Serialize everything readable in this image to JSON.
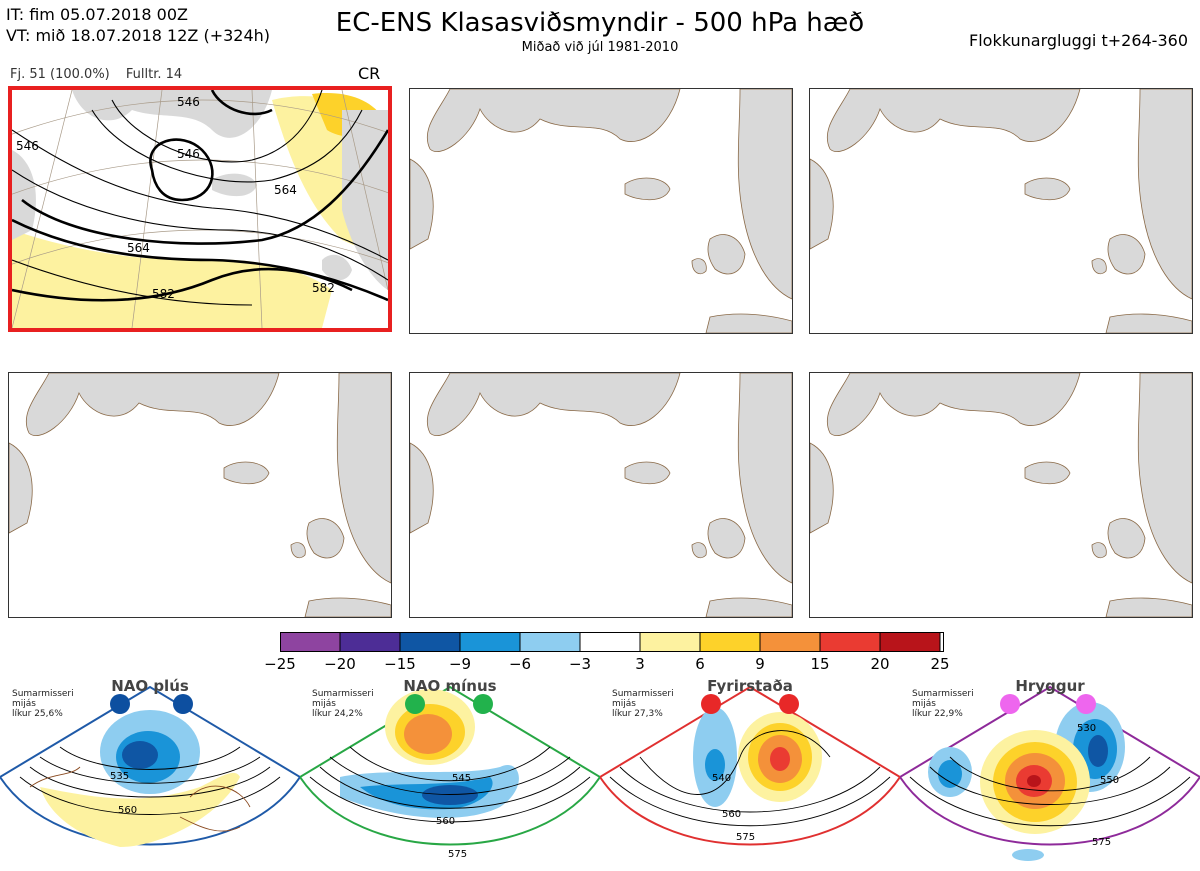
{
  "header": {
    "init_time": "IT: fim 05.07.2018 00Z",
    "valid_time": "VT: mið 18.07.2018 12Z  (+324h)",
    "title": "EC-ENS Klasasviðsmyndir - 500 hPa hæð",
    "subtitle": "Miðað við júl 1981-2010",
    "window": "Flokkunargluggi t+264-360"
  },
  "panel1": {
    "members": "Fj. 51 (100.0%)",
    "representative": "Fulltr. 14",
    "cluster_code": "CR",
    "contour_labels": [
      "546",
      "546",
      "564",
      "564",
      "582",
      "582",
      "546"
    ]
  },
  "colorbar": {
    "ticks": [
      "−25",
      "−20",
      "−15",
      "−9",
      "−6",
      "−3",
      "3",
      "6",
      "9",
      "15",
      "20",
      "25"
    ],
    "colors": [
      "#8e44a0",
      "#4d2d96",
      "#0f56a4",
      "#1a94d8",
      "#8ecdf0",
      "#ffffff",
      "#fdf2a0",
      "#fdd22a",
      "#f4913a",
      "#ea3b32",
      "#b8141a"
    ]
  },
  "clusters": [
    {
      "name": "NAO plús",
      "season": "Sumarmisseri",
      "window": "mijás",
      "prob": "líkur 25,6%",
      "frame_color": "#1f5aa8",
      "dot_color": "#0d4fa0",
      "labels": [
        "535",
        "560"
      ]
    },
    {
      "name": "NAO mínus",
      "season": "Sumarmisseri",
      "window": "mijás",
      "prob": "líkur 24,2%",
      "frame_color": "#28a745",
      "dot_color": "#22b24c",
      "labels": [
        "545",
        "560",
        "575"
      ]
    },
    {
      "name": "Fyrirstaða",
      "season": "Sumarmisseri",
      "window": "mijás",
      "prob": "líkur 27,3%",
      "frame_color": "#e03030",
      "dot_color": "#e82828",
      "labels": [
        "540",
        "560",
        "575"
      ]
    },
    {
      "name": "Hryggur",
      "season": "Sumarmisseri",
      "window": "mijás",
      "prob": "líkur 22,9%",
      "frame_color": "#8e2a9a",
      "dot_color": "#ee66ee",
      "labels": [
        "530",
        "550",
        "575"
      ]
    }
  ]
}
